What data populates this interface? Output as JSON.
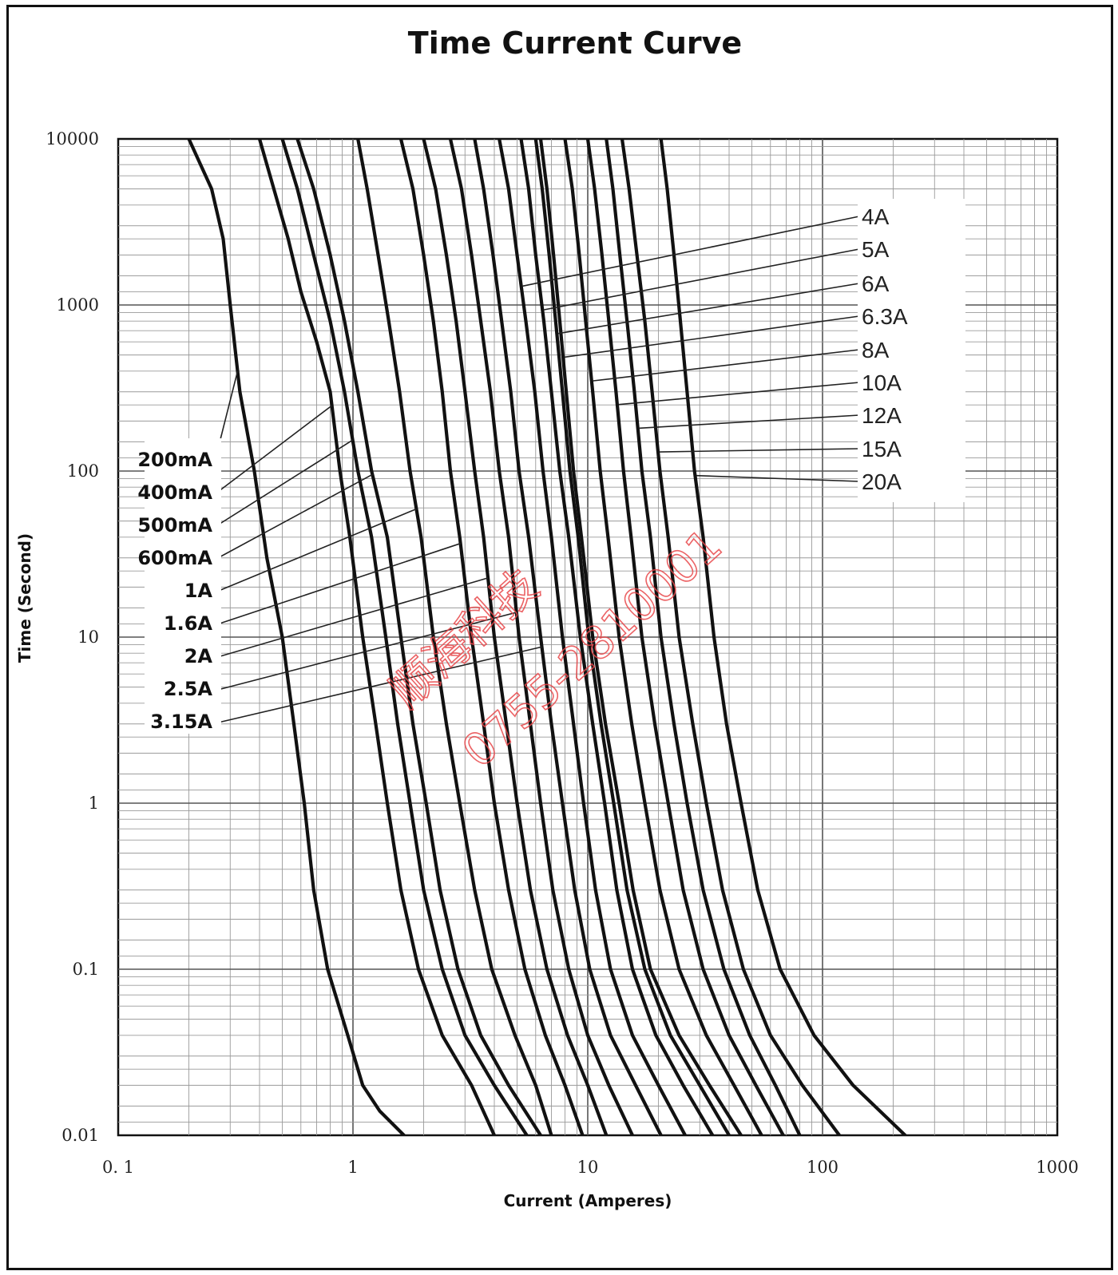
{
  "chart_data": {
    "type": "line",
    "title": "Time Current Curve",
    "xlabel": "Current  (Amperes)",
    "ylabel": "Time (Second)",
    "x_scale": "log",
    "y_scale": "log",
    "xlim": [
      0.1,
      1000
    ],
    "ylim": [
      0.01,
      10000
    ],
    "x_ticks": [
      {
        "value": 0.1,
        "label": "0. 1"
      },
      {
        "value": 1,
        "label": "1"
      },
      {
        "value": 10,
        "label": "10"
      },
      {
        "value": 100,
        "label": "100"
      },
      {
        "value": 1000,
        "label": "1000"
      }
    ],
    "y_ticks": [
      {
        "value": 10000,
        "label": "10000"
      },
      {
        "value": 1000,
        "label": "1000"
      },
      {
        "value": 100,
        "label": "100"
      },
      {
        "value": 10,
        "label": "10"
      },
      {
        "value": 1,
        "label": "1"
      },
      {
        "value": 0.1,
        "label": "0.1"
      },
      {
        "value": 0.01,
        "label": "0.01"
      }
    ],
    "grid": true,
    "legend": "curve labels with leader lines: left side (200mA–3.15A), right side (4A–20A)",
    "series": [
      {
        "name": "200mA",
        "points": [
          [
            0.2,
            10000
          ],
          [
            0.25,
            5000
          ],
          [
            0.28,
            2500
          ],
          [
            0.3,
            1000
          ],
          [
            0.33,
            300
          ],
          [
            0.38,
            100
          ],
          [
            0.43,
            30
          ],
          [
            0.5,
            10
          ],
          [
            0.56,
            3
          ],
          [
            0.62,
            1
          ],
          [
            0.68,
            0.3
          ],
          [
            0.78,
            0.1
          ],
          [
            0.95,
            0.04
          ],
          [
            1.1,
            0.02
          ],
          [
            1.3,
            0.014
          ],
          [
            1.65,
            0.01
          ]
        ]
      },
      {
        "name": "400mA",
        "points": [
          [
            0.4,
            10000
          ],
          [
            0.46,
            5000
          ],
          [
            0.53,
            2500
          ],
          [
            0.6,
            1200
          ],
          [
            0.7,
            600
          ],
          [
            0.8,
            300
          ],
          [
            0.88,
            100
          ],
          [
            0.97,
            40
          ],
          [
            1.1,
            10
          ],
          [
            1.25,
            3
          ],
          [
            1.4,
            1
          ],
          [
            1.6,
            0.3
          ],
          [
            1.9,
            0.1
          ],
          [
            2.4,
            0.04
          ],
          [
            3.2,
            0.02
          ],
          [
            4.0,
            0.01
          ]
        ]
      },
      {
        "name": "500mA",
        "points": [
          [
            0.5,
            10000
          ],
          [
            0.58,
            5000
          ],
          [
            0.68,
            2000
          ],
          [
            0.8,
            800
          ],
          [
            0.92,
            300
          ],
          [
            1.05,
            100
          ],
          [
            1.2,
            40
          ],
          [
            1.38,
            10
          ],
          [
            1.55,
            3
          ],
          [
            1.75,
            1
          ],
          [
            2.0,
            0.3
          ],
          [
            2.4,
            0.1
          ],
          [
            3.0,
            0.04
          ],
          [
            4.0,
            0.02
          ],
          [
            5.5,
            0.01
          ]
        ]
      },
      {
        "name": "600mA",
        "points": [
          [
            0.58,
            10000
          ],
          [
            0.68,
            5000
          ],
          [
            0.8,
            2000
          ],
          [
            0.92,
            800
          ],
          [
            1.05,
            300
          ],
          [
            1.2,
            100
          ],
          [
            1.4,
            40
          ],
          [
            1.6,
            10
          ],
          [
            1.8,
            3
          ],
          [
            2.05,
            1
          ],
          [
            2.35,
            0.3
          ],
          [
            2.8,
            0.1
          ],
          [
            3.5,
            0.04
          ],
          [
            4.6,
            0.02
          ],
          [
            6.3,
            0.01
          ]
        ]
      },
      {
        "name": "1A",
        "points": [
          [
            1.05,
            10000
          ],
          [
            1.15,
            5000
          ],
          [
            1.28,
            2000
          ],
          [
            1.42,
            800
          ],
          [
            1.58,
            300
          ],
          [
            1.75,
            100
          ],
          [
            1.95,
            40
          ],
          [
            2.2,
            10
          ],
          [
            2.5,
            3
          ],
          [
            2.85,
            1
          ],
          [
            3.3,
            0.3
          ],
          [
            3.9,
            0.1
          ],
          [
            4.9,
            0.04
          ],
          [
            6.0,
            0.02
          ],
          [
            7.0,
            0.01
          ]
        ]
      },
      {
        "name": "1.6A",
        "points": [
          [
            1.6,
            10000
          ],
          [
            1.8,
            5000
          ],
          [
            2.0,
            2000
          ],
          [
            2.2,
            800
          ],
          [
            2.4,
            300
          ],
          [
            2.6,
            100
          ],
          [
            2.85,
            40
          ],
          [
            3.2,
            10
          ],
          [
            3.6,
            3
          ],
          [
            4.0,
            1
          ],
          [
            4.6,
            0.3
          ],
          [
            5.4,
            0.1
          ],
          [
            6.6,
            0.04
          ],
          [
            8.0,
            0.02
          ],
          [
            9.5,
            0.01
          ]
        ]
      },
      {
        "name": "2A",
        "points": [
          [
            2.0,
            10000
          ],
          [
            2.25,
            5000
          ],
          [
            2.5,
            2000
          ],
          [
            2.75,
            800
          ],
          [
            3.0,
            300
          ],
          [
            3.3,
            100
          ],
          [
            3.6,
            40
          ],
          [
            4.0,
            10
          ],
          [
            4.5,
            3
          ],
          [
            5.0,
            1
          ],
          [
            5.7,
            0.3
          ],
          [
            6.7,
            0.1
          ],
          [
            8.2,
            0.04
          ],
          [
            10.0,
            0.02
          ],
          [
            12.0,
            0.01
          ]
        ]
      },
      {
        "name": "2.5A",
        "points": [
          [
            2.6,
            10000
          ],
          [
            2.9,
            5000
          ],
          [
            3.2,
            2000
          ],
          [
            3.5,
            800
          ],
          [
            3.85,
            300
          ],
          [
            4.2,
            100
          ],
          [
            4.6,
            40
          ],
          [
            5.1,
            10
          ],
          [
            5.7,
            3
          ],
          [
            6.3,
            1
          ],
          [
            7.1,
            0.3
          ],
          [
            8.3,
            0.1
          ],
          [
            10.0,
            0.04
          ],
          [
            12.3,
            0.02
          ],
          [
            15.5,
            0.01
          ]
        ]
      },
      {
        "name": "3.15A",
        "points": [
          [
            3.3,
            10000
          ],
          [
            3.6,
            5000
          ],
          [
            3.95,
            2000
          ],
          [
            4.3,
            800
          ],
          [
            4.7,
            300
          ],
          [
            5.1,
            100
          ],
          [
            5.6,
            40
          ],
          [
            6.3,
            10
          ],
          [
            7.0,
            3
          ],
          [
            7.8,
            1
          ],
          [
            8.8,
            0.3
          ],
          [
            10.2,
            0.1
          ],
          [
            12.5,
            0.04
          ],
          [
            16.0,
            0.02
          ],
          [
            20.5,
            0.01
          ]
        ]
      },
      {
        "name": "4A",
        "points": [
          [
            4.2,
            10000
          ],
          [
            4.6,
            5000
          ],
          [
            5.0,
            2000
          ],
          [
            5.45,
            800
          ],
          [
            5.95,
            300
          ],
          [
            6.45,
            100
          ],
          [
            7.0,
            40
          ],
          [
            7.8,
            10
          ],
          [
            8.7,
            3
          ],
          [
            9.6,
            1
          ],
          [
            10.8,
            0.3
          ],
          [
            12.5,
            0.1
          ],
          [
            15.5,
            0.04
          ],
          [
            20.0,
            0.02
          ],
          [
            26.0,
            0.01
          ]
        ]
      },
      {
        "name": "5A",
        "points": [
          [
            5.2,
            10000
          ],
          [
            5.6,
            5000
          ],
          [
            6.0,
            2000
          ],
          [
            6.5,
            800
          ],
          [
            7.0,
            300
          ],
          [
            7.6,
            100
          ],
          [
            8.3,
            40
          ],
          [
            9.3,
            10
          ],
          [
            10.5,
            3
          ],
          [
            11.8,
            1
          ],
          [
            13.3,
            0.3
          ],
          [
            15.5,
            0.1
          ],
          [
            19.5,
            0.04
          ],
          [
            25.5,
            0.02
          ],
          [
            34.0,
            0.01
          ]
        ]
      },
      {
        "name": "6A",
        "points": [
          [
            6.0,
            10000
          ],
          [
            6.4,
            5000
          ],
          [
            6.85,
            2000
          ],
          [
            7.3,
            800
          ],
          [
            7.8,
            300
          ],
          [
            8.4,
            100
          ],
          [
            9.1,
            40
          ],
          [
            10.1,
            10
          ],
          [
            11.4,
            3
          ],
          [
            12.9,
            1
          ],
          [
            14.7,
            0.3
          ],
          [
            17.5,
            0.1
          ],
          [
            22.5,
            0.04
          ],
          [
            30.0,
            0.02
          ],
          [
            40.0,
            0.01
          ]
        ]
      },
      {
        "name": "6.3A",
        "points": [
          [
            6.3,
            10000
          ],
          [
            6.7,
            5000
          ],
          [
            7.15,
            2000
          ],
          [
            7.6,
            800
          ],
          [
            8.1,
            300
          ],
          [
            8.7,
            100
          ],
          [
            9.4,
            40
          ],
          [
            10.5,
            10
          ],
          [
            11.9,
            3
          ],
          [
            13.6,
            1
          ],
          [
            15.6,
            0.3
          ],
          [
            18.5,
            0.1
          ],
          [
            24.5,
            0.04
          ],
          [
            33.0,
            0.02
          ],
          [
            45.0,
            0.01
          ]
        ]
      },
      {
        "name": "8A",
        "points": [
          [
            8.0,
            10000
          ],
          [
            8.6,
            5000
          ],
          [
            9.2,
            2000
          ],
          [
            9.8,
            800
          ],
          [
            10.5,
            300
          ],
          [
            11.3,
            100
          ],
          [
            12.2,
            40
          ],
          [
            13.6,
            10
          ],
          [
            15.4,
            3
          ],
          [
            17.5,
            1
          ],
          [
            20.3,
            0.3
          ],
          [
            24.5,
            0.1
          ],
          [
            32.0,
            0.04
          ],
          [
            42.0,
            0.02
          ],
          [
            55.0,
            0.01
          ]
        ]
      },
      {
        "name": "10A",
        "points": [
          [
            10.0,
            10000
          ],
          [
            10.7,
            5000
          ],
          [
            11.5,
            2000
          ],
          [
            12.3,
            800
          ],
          [
            13.2,
            300
          ],
          [
            14.2,
            100
          ],
          [
            15.3,
            40
          ],
          [
            17.0,
            10
          ],
          [
            19.3,
            3
          ],
          [
            22.0,
            1
          ],
          [
            25.5,
            0.3
          ],
          [
            31.0,
            0.1
          ],
          [
            40.0,
            0.04
          ],
          [
            52.0,
            0.02
          ],
          [
            68.0,
            0.01
          ]
        ]
      },
      {
        "name": "12A",
        "points": [
          [
            12.0,
            10000
          ],
          [
            12.8,
            5000
          ],
          [
            13.7,
            2000
          ],
          [
            14.7,
            800
          ],
          [
            15.8,
            300
          ],
          [
            17.0,
            100
          ],
          [
            18.5,
            40
          ],
          [
            20.5,
            10
          ],
          [
            23.3,
            3
          ],
          [
            26.5,
            1
          ],
          [
            31.0,
            0.3
          ],
          [
            38.0,
            0.1
          ],
          [
            49.0,
            0.04
          ],
          [
            63.0,
            0.02
          ],
          [
            80.0,
            0.01
          ]
        ]
      },
      {
        "name": "15A",
        "points": [
          [
            14.0,
            10000
          ],
          [
            15.0,
            5000
          ],
          [
            16.2,
            2000
          ],
          [
            17.5,
            800
          ],
          [
            18.8,
            300
          ],
          [
            20.3,
            100
          ],
          [
            22.0,
            40
          ],
          [
            24.5,
            10
          ],
          [
            28.0,
            3
          ],
          [
            32.0,
            1
          ],
          [
            37.5,
            0.3
          ],
          [
            46.0,
            0.1
          ],
          [
            60.0,
            0.04
          ],
          [
            82.0,
            0.02
          ],
          [
            118.0,
            0.01
          ]
        ]
      },
      {
        "name": "20A",
        "points": [
          [
            20.5,
            10000
          ],
          [
            21.8,
            5000
          ],
          [
            23.3,
            2000
          ],
          [
            24.8,
            800
          ],
          [
            26.5,
            300
          ],
          [
            28.5,
            100
          ],
          [
            31.0,
            40
          ],
          [
            34.5,
            10
          ],
          [
            39.0,
            3
          ],
          [
            45.0,
            1
          ],
          [
            53.0,
            0.3
          ],
          [
            66.0,
            0.1
          ],
          [
            92.0,
            0.04
          ],
          [
            135.0,
            0.02
          ],
          [
            225.0,
            0.01
          ]
        ]
      }
    ],
    "labels_left": [
      {
        "text": "200mA",
        "series": "200mA"
      },
      {
        "text": "400mA",
        "series": "400mA"
      },
      {
        "text": "500mA",
        "series": "500mA"
      },
      {
        "text": "600mA",
        "series": "600mA"
      },
      {
        "text": "1A",
        "series": "1A"
      },
      {
        "text": "1.6A",
        "series": "1.6A"
      },
      {
        "text": "2A",
        "series": "2A"
      },
      {
        "text": "2.5A",
        "series": "2.5A"
      },
      {
        "text": "3.15A",
        "series": "3.15A"
      }
    ],
    "labels_right": [
      {
        "text": "4A",
        "series": "4A"
      },
      {
        "text": "5A",
        "series": "5A"
      },
      {
        "text": "6A",
        "series": "6A"
      },
      {
        "text": "6.3A",
        "series": "6.3A"
      },
      {
        "text": "8A",
        "series": "8A"
      },
      {
        "text": "10A",
        "series": "10A"
      },
      {
        "text": "12A",
        "series": "12A"
      },
      {
        "text": "15A",
        "series": "15A"
      },
      {
        "text": "20A",
        "series": "20A"
      }
    ],
    "line_color": "#111111",
    "grid_color": "#9a9a9a",
    "watermark": {
      "line1": "顺海科技",
      "line2": "0755-2810001",
      "color": "#e8474a"
    }
  }
}
